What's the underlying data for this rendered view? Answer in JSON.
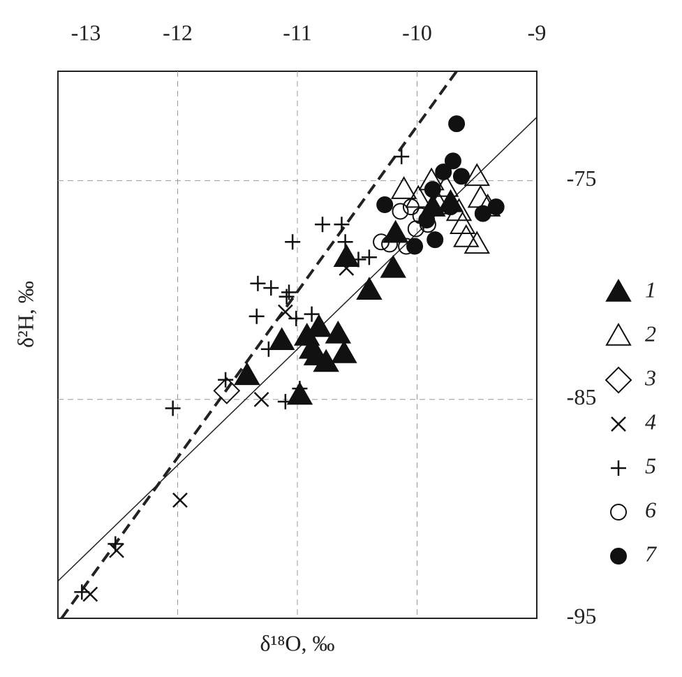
{
  "chart_data": {
    "type": "scatter",
    "x_label": "δ¹⁸O, ‰",
    "y_label": "δ²H, ‰",
    "xlim": [
      -13,
      -9
    ],
    "xticks": [
      -13,
      -12,
      -11,
      -10,
      -9
    ],
    "ylim": [
      -95,
      -70
    ],
    "yticks": [
      -95,
      -85,
      -75
    ],
    "grid": true,
    "legend": "right",
    "series": [
      {
        "name": "1",
        "marker": "triangle-filled",
        "color": "#111111",
        "x": [
          -10.59,
          -10.2,
          -10.4,
          -11.13,
          -10.92,
          -10.82,
          -10.66,
          -10.88,
          -10.84,
          -10.76,
          -10.61,
          -11.42,
          -10.98,
          -10.18,
          -9.72,
          -9.87
        ],
        "values": [
          -78.5,
          -79.0,
          -80.0,
          -82.3,
          -82.1,
          -81.7,
          -82.0,
          -82.7,
          -83.0,
          -83.3,
          -82.9,
          -83.9,
          -84.8,
          -77.4,
          -76.0,
          -76.2
        ]
      },
      {
        "name": "2",
        "marker": "triangle-open",
        "color": "#111111",
        "x": [
          -9.5,
          -9.88,
          -9.76,
          -9.99,
          -10.11,
          -9.65,
          -9.47,
          -9.62,
          -9.5,
          -9.59,
          -9.82,
          -9.41
        ],
        "values": [
          -74.8,
          -75.0,
          -75.3,
          -75.8,
          -75.4,
          -76.4,
          -75.8,
          -77.0,
          -77.9,
          -77.6,
          -76.1,
          -76.2
        ]
      },
      {
        "name": "3",
        "marker": "diamond-open",
        "color": "#111111",
        "x": [
          -11.59
        ],
        "values": [
          -84.6
        ]
      },
      {
        "name": "4",
        "marker": "cross",
        "color": "#111111",
        "x": [
          -10.59,
          -11.1,
          -11.3,
          -11.98,
          -12.51,
          -12.73
        ],
        "values": [
          -79.0,
          -81.0,
          -85.0,
          -89.6,
          -91.9,
          -93.9
        ]
      },
      {
        "name": "5",
        "marker": "plus",
        "color": "#111111",
        "x": [
          -10.13,
          -10.63,
          -10.79,
          -11.04,
          -10.6,
          -10.4,
          -10.49,
          -11.33,
          -11.22,
          -11.07,
          -11.09,
          -11.34,
          -11.01,
          -10.88,
          -11.24,
          -11.6,
          -12.04,
          -11.1,
          -10.98,
          -12.52,
          -12.8
        ],
        "values": [
          -73.9,
          -77.0,
          -77.0,
          -77.8,
          -77.8,
          -78.5,
          -78.6,
          -79.7,
          -79.9,
          -80.1,
          -80.3,
          -81.2,
          -81.3,
          -81.1,
          -82.7,
          -84.1,
          -85.4,
          -85.1,
          -84.5,
          -91.6,
          -93.8
        ]
      },
      {
        "name": "6",
        "marker": "circle-open",
        "color": "#111111",
        "x": [
          -10.3,
          -10.23,
          -10.09,
          -10.14,
          -10.05,
          -9.97,
          -9.91,
          -10.01
        ],
        "values": [
          -77.8,
          -77.9,
          -78.0,
          -76.4,
          -76.2,
          -76.6,
          -77.0,
          -77.2
        ]
      },
      {
        "name": "7",
        "marker": "circle-filled",
        "color": "#111111",
        "x": [
          -9.67,
          -9.7,
          -9.78,
          -9.63,
          -9.87,
          -10.27,
          -9.34,
          -9.45,
          -9.72,
          -9.92,
          -9.85,
          -10.02
        ],
        "values": [
          -72.4,
          -74.1,
          -74.6,
          -74.8,
          -75.4,
          -76.1,
          -76.2,
          -76.5,
          -76.2,
          -76.8,
          -77.7,
          -78.0
        ]
      }
    ],
    "lines": [
      {
        "style": "solid",
        "color": "#222222",
        "x": [
          -13,
          -9
        ],
        "values": [
          -93.3,
          -72.1
        ]
      },
      {
        "style": "dashed",
        "color": "#222222",
        "x": [
          -12.97,
          -9.67
        ],
        "values": [
          -95,
          -70
        ]
      }
    ]
  }
}
